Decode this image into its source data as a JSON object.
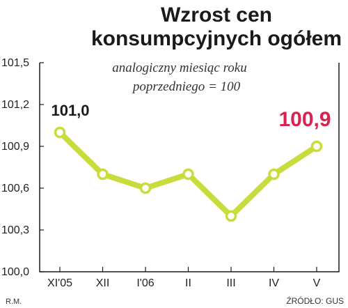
{
  "chart_data": {
    "type": "line",
    "title_line1": "Wzrost cen",
    "title_line2": "konsumpcyjnych ogółem",
    "subtitle_line1": "analogiczny miesiąc roku",
    "subtitle_line2": "poprzedniego = 100",
    "categories": [
      "XI'05",
      "XII",
      "I'06",
      "II",
      "III",
      "IV",
      "V"
    ],
    "values": [
      101.0,
      100.7,
      100.6,
      100.7,
      100.4,
      100.7,
      100.9
    ],
    "y_ticks": [
      "100,0",
      "100,3",
      "100,6",
      "100,9",
      "101,2",
      "101,5"
    ],
    "ylim": [
      100.0,
      101.5
    ],
    "grid": false,
    "data_labels": {
      "first": "101,0",
      "last": "100,9"
    },
    "author": "R.M.",
    "source": "ŹRÓDŁO: GUS"
  },
  "colors": {
    "line": "#c8dc3c",
    "marker_fill": "#ffffff",
    "axis": "#1a1a1a",
    "last_label": "#d8244e"
  }
}
